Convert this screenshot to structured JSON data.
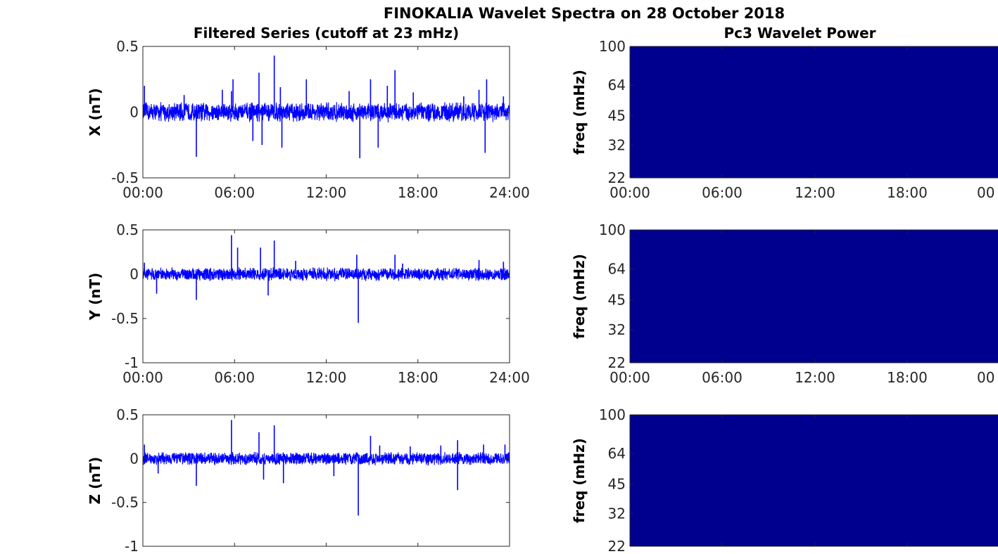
{
  "figure_title": "FINOKALIA Wavelet Spectra on 28 October 2018",
  "colors": {
    "series": "#0000ff",
    "spectrum_fill": "#00008f",
    "axis": "#262626"
  },
  "chart_data": [
    {
      "type": "line",
      "title": "Filtered Series (cutoff at 23 mHz)",
      "ylabel": "X (nT)",
      "ylim": [
        -0.5,
        0.5
      ],
      "yticks": [
        -0.5,
        0,
        0.5
      ],
      "yticklabels": [
        "-0.5",
        "0",
        "0.5"
      ],
      "xlim": [
        0,
        24
      ],
      "xticks": [
        0,
        6,
        12,
        18,
        24
      ],
      "xticklabels": [
        "00:00",
        "06:00",
        "12:00",
        "18:00",
        "24:00"
      ],
      "series": [
        {
          "noise_amplitude": 0.08,
          "spikes": [
            [
              0.1,
              0.2
            ],
            [
              2.7,
              0.13
            ],
            [
              3.5,
              -0.34
            ],
            [
              5.2,
              0.17
            ],
            [
              5.8,
              0.16
            ],
            [
              5.9,
              0.25
            ],
            [
              7.2,
              -0.22
            ],
            [
              7.6,
              0.3
            ],
            [
              7.8,
              -0.25
            ],
            [
              8.6,
              0.43
            ],
            [
              9.0,
              0.19
            ],
            [
              9.1,
              -0.27
            ],
            [
              10.7,
              0.25
            ],
            [
              13.5,
              0.16
            ],
            [
              14.2,
              -0.35
            ],
            [
              14.9,
              0.25
            ],
            [
              15.4,
              -0.27
            ],
            [
              16.0,
              0.2
            ],
            [
              16.5,
              0.32
            ],
            [
              17.7,
              0.15
            ],
            [
              21.0,
              0.12
            ],
            [
              22.0,
              0.17
            ],
            [
              22.4,
              -0.31
            ],
            [
              22.5,
              0.25
            ],
            [
              23.6,
              0.12
            ]
          ]
        }
      ]
    },
    {
      "type": "line",
      "title": "",
      "ylabel": "Y (nT)",
      "ylim": [
        -1,
        0.5
      ],
      "yticks": [
        -1,
        -0.5,
        0,
        0.5
      ],
      "yticklabels": [
        "-1",
        "-0.5",
        "0",
        "0.5"
      ],
      "xlim": [
        0,
        24
      ],
      "xticks": [
        0,
        6,
        12,
        18,
        24
      ],
      "xticklabels": [
        "00:00",
        "06:00",
        "12:00",
        "18:00",
        "24:00"
      ],
      "series": [
        {
          "noise_amplitude": 0.08,
          "spikes": [
            [
              0.1,
              0.13
            ],
            [
              0.9,
              -0.22
            ],
            [
              3.5,
              -0.29
            ],
            [
              5.8,
              0.44
            ],
            [
              6.2,
              0.3
            ],
            [
              7.7,
              0.3
            ],
            [
              8.2,
              -0.24
            ],
            [
              8.6,
              0.38
            ],
            [
              10.0,
              0.15
            ],
            [
              14.1,
              -0.55
            ],
            [
              14.0,
              0.22
            ],
            [
              16.5,
              0.22
            ],
            [
              17.0,
              0.12
            ],
            [
              22.0,
              0.16
            ],
            [
              23.6,
              0.14
            ]
          ]
        }
      ]
    },
    {
      "type": "line",
      "title": "",
      "ylabel": "Z (nT)",
      "ylim": [
        -1,
        0.5
      ],
      "yticks": [
        -1,
        -0.5,
        0,
        0.5
      ],
      "yticklabels": [
        "-1",
        "-0.5",
        "0",
        "0.5"
      ],
      "xlim": [
        0,
        24
      ],
      "xticks": [
        0,
        6,
        12,
        18,
        24
      ],
      "xticklabels": [],
      "series": [
        {
          "noise_amplitude": 0.08,
          "spikes": [
            [
              0.1,
              0.16
            ],
            [
              1.0,
              -0.17
            ],
            [
              3.5,
              -0.31
            ],
            [
              5.8,
              0.44
            ],
            [
              7.6,
              0.3
            ],
            [
              7.9,
              -0.24
            ],
            [
              8.6,
              0.38
            ],
            [
              9.2,
              -0.28
            ],
            [
              12.5,
              -0.2
            ],
            [
              14.1,
              -0.65
            ],
            [
              14.9,
              0.26
            ],
            [
              15.5,
              0.15
            ],
            [
              17.5,
              0.14
            ],
            [
              19.5,
              0.15
            ],
            [
              20.6,
              0.21
            ],
            [
              20.6,
              -0.36
            ],
            [
              22.3,
              0.16
            ],
            [
              23.7,
              0.16
            ]
          ]
        }
      ]
    },
    {
      "type": "heatmap",
      "title": "Pc3 Wavelet Power",
      "ylabel": "freq (mHz)",
      "yscale": "log",
      "ylim": [
        22,
        100
      ],
      "yticks": [
        22,
        32,
        45,
        64,
        100
      ],
      "yticklabels": [
        "22",
        "32",
        "45",
        "64",
        "100"
      ],
      "xticklabels": [
        "00:00",
        "06:00",
        "12:00",
        "18:00",
        "00"
      ]
    },
    {
      "type": "heatmap",
      "title": "",
      "ylabel": "freq (mHz)",
      "yscale": "log",
      "ylim": [
        22,
        100
      ],
      "yticks": [
        22,
        32,
        45,
        64,
        100
      ],
      "yticklabels": [
        "22",
        "32",
        "45",
        "64",
        "100"
      ],
      "xticklabels": [
        "00:00",
        "06:00",
        "12:00",
        "18:00",
        "00"
      ]
    },
    {
      "type": "heatmap",
      "title": "",
      "ylabel": "freq (mHz)",
      "yscale": "log",
      "ylim": [
        22,
        100
      ],
      "yticks": [
        22,
        32,
        45,
        64,
        100
      ],
      "yticklabels": [
        "22",
        "32",
        "45",
        "64",
        "100"
      ],
      "xticklabels": []
    }
  ]
}
